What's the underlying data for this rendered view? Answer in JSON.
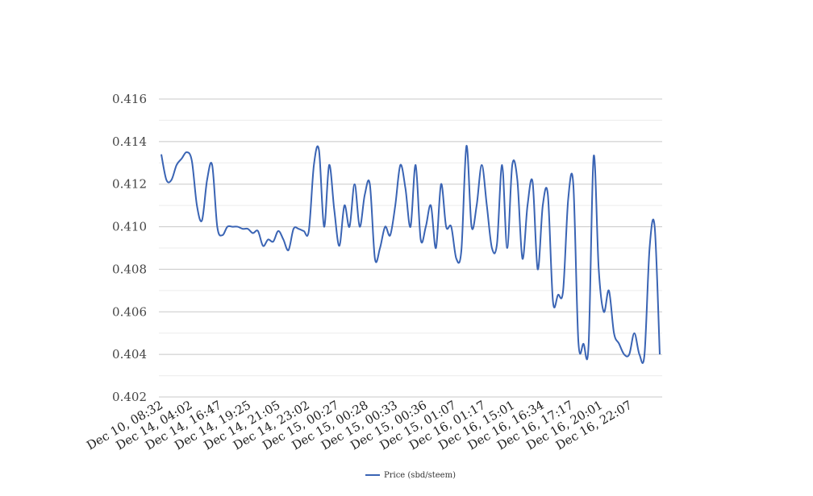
{
  "chart_data": {
    "type": "line",
    "title": "",
    "xlabel": "",
    "ylabel": "",
    "ylim": [
      0.402,
      0.416
    ],
    "yticks": [
      "0.402",
      "0.404",
      "0.406",
      "0.408",
      "0.410",
      "0.412",
      "0.414",
      "0.416"
    ],
    "x_tick_labels": [
      "Dec 10, 08:32",
      "Dec 14, 04:02",
      "Dec 14, 16:47",
      "Dec 14, 19:25",
      "Dec 14, 21:05",
      "Dec 14, 23:02",
      "Dec 15, 00:27",
      "Dec 15, 00:28",
      "Dec 15, 00:33",
      "Dec 15, 00:36",
      "Dec 15, 01:07",
      "Dec 16, 01:17",
      "Dec 16, 15:01",
      "Dec 16, 16:34",
      "Dec 16, 17:17",
      "Dec 16, 20:01",
      "Dec 16, 22:07"
    ],
    "grid": true,
    "legend_position": "bottom",
    "series": [
      {
        "name": "Price (sbd/steem)",
        "color": "#3a64b4",
        "values": [
          0.4134,
          0.4122,
          0.4122,
          0.4129,
          0.4132,
          0.4135,
          0.4131,
          0.411,
          0.4103,
          0.4122,
          0.4129,
          0.41,
          0.4096,
          0.41,
          0.41,
          0.41,
          0.4099,
          0.4099,
          0.4097,
          0.4098,
          0.4091,
          0.4094,
          0.4093,
          0.4098,
          0.4094,
          0.4089,
          0.4099,
          0.4099,
          0.4098,
          0.4098,
          0.4129,
          0.4136,
          0.41,
          0.4129,
          0.4108,
          0.4091,
          0.411,
          0.41,
          0.412,
          0.41,
          0.4115,
          0.412,
          0.4085,
          0.409,
          0.41,
          0.4096,
          0.411,
          0.4129,
          0.4118,
          0.41,
          0.4129,
          0.4094,
          0.41,
          0.411,
          0.409,
          0.412,
          0.41,
          0.41,
          0.4085,
          0.4089,
          0.4138,
          0.41,
          0.411,
          0.4129,
          0.411,
          0.409,
          0.4092,
          0.4129,
          0.409,
          0.4129,
          0.4122,
          0.4085,
          0.411,
          0.4121,
          0.408,
          0.411,
          0.4115,
          0.4065,
          0.4068,
          0.407,
          0.4113,
          0.412,
          0.4046,
          0.4045,
          0.4044,
          0.4133,
          0.408,
          0.406,
          0.407,
          0.405,
          0.4045,
          0.404,
          0.404,
          0.405,
          0.404,
          0.404,
          0.409,
          0.41,
          0.404
        ]
      }
    ]
  }
}
